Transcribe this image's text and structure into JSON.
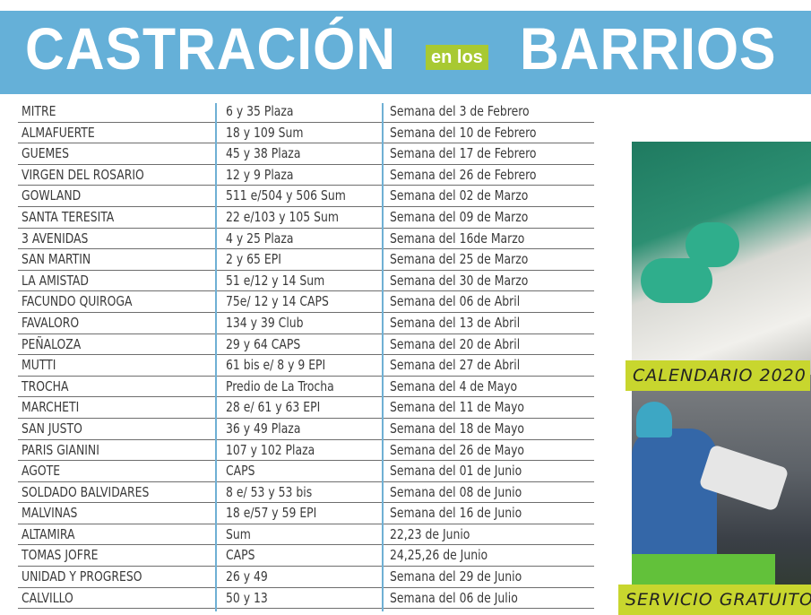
{
  "header": {
    "title_left": "CASTRACIÓN",
    "title_connector": "en los",
    "title_right": "BARRIOS",
    "banner_color": "#65b0d8",
    "connector_color": "#a8c932"
  },
  "table": {
    "rows": [
      [
        "MITRE",
        "6 y 35 Plaza",
        "Semana del 3 de Febrero"
      ],
      [
        "ALMAFUERTE",
        "18 y 109 Sum",
        "Semana del 10 de Febrero"
      ],
      [
        "GUEMES",
        "45 y 38 Plaza",
        "Semana del 17 de Febrero"
      ],
      [
        "VIRGEN DEL ROSARIO",
        "12 y 9 Plaza",
        "Semana del 26 de Febrero"
      ],
      [
        "GOWLAND",
        "511 e/504 y 506 Sum",
        "Semana del 02 de Marzo"
      ],
      [
        "SANTA TERESITA",
        "22 e/103 y 105 Sum",
        "Semana del 09 de Marzo"
      ],
      [
        "3 AVENIDAS",
        "4 y 25 Plaza",
        "Semana del 16de Marzo"
      ],
      [
        "SAN MARTIN",
        "2 y 65 EPI",
        "Semana del 25 de Marzo"
      ],
      [
        "LA AMISTAD",
        "51 e/12 y 14 Sum",
        "Semana del 30 de Marzo"
      ],
      [
        "FACUNDO QUIROGA",
        "75e/ 12 y 14 CAPS",
        "Semana del 06 de Abril"
      ],
      [
        "FAVALORO",
        "134 y 39 Club",
        "Semana del 13 de Abril"
      ],
      [
        "PEÑALOZA",
        "29 y 64 CAPS",
        "Semana del 20 de Abril"
      ],
      [
        "MUTTI",
        "61 bis e/ 8 y 9 EPI",
        "Semana del 27 de Abril"
      ],
      [
        "TROCHA",
        "Predio de La Trocha",
        "Semana del 4 de Mayo"
      ],
      [
        "MARCHETI",
        "28 e/ 61 y 63 EPI",
        "Semana del 11 de Mayo"
      ],
      [
        "SAN JUSTO",
        "36 y 49 Plaza",
        "Semana del 18 de Mayo"
      ],
      [
        "PARIS GIANINI",
        "107 y 102 Plaza",
        "Semana del 26 de Mayo"
      ],
      [
        "AGOTE",
        "CAPS",
        "Semana del 01 de Junio"
      ],
      [
        "SOLDADO BALVIDARES",
        "8 e/ 53 y 53 bis",
        "Semana del 08 de Junio"
      ],
      [
        "MALVINAS",
        "18 e/57 y 59 EPI",
        "Semana del 16 de Junio"
      ],
      [
        "ALTAMIRA",
        "Sum",
        "22,23 de Junio"
      ],
      [
        "TOMAS JOFRE",
        "CAPS",
        "24,25,26 de Junio"
      ],
      [
        "UNIDAD Y PROGRESO",
        "26 y 49",
        "Semana del 29 de Junio"
      ],
      [
        "CALVILLO",
        "50 y 13",
        "Semana del 06 de Julio"
      ]
    ]
  },
  "sidebar": {
    "tag_top": "CALENDARIO 2020",
    "tag_bottom": "SERVICIO GRATUITO",
    "tag_color": "#c8d62e"
  }
}
